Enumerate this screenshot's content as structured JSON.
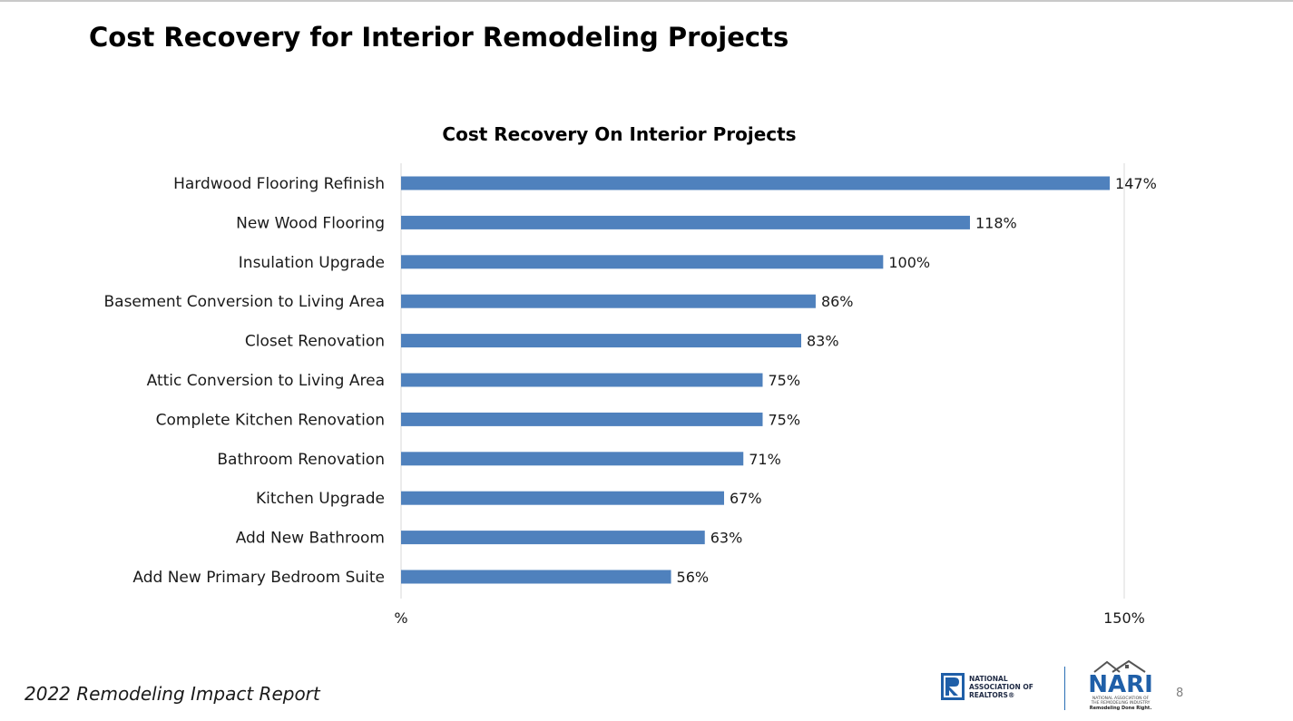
{
  "slide": {
    "title": "Cost Recovery for Interior Remodeling Projects",
    "footer_report": "2022 Remodeling Impact Report",
    "page_number": "8"
  },
  "logos": {
    "nar": {
      "line1": "NATIONAL",
      "line2": "ASSOCIATION OF",
      "line3": "REALTORS®",
      "icon": "realtor-r-icon"
    },
    "nari": {
      "word": "NARI",
      "sub1": "NATIONAL ASSOCIATION OF",
      "sub2": "THE REMODELING INDUSTRY",
      "tagline": "Remodeling Done Right.",
      "icon": "house-roof-icon"
    }
  },
  "colors": {
    "bar": "#4f81bd",
    "gridline": "#d9d9d9"
  },
  "chart_data": {
    "type": "bar",
    "orientation": "horizontal",
    "title": "Cost Recovery On Interior Projects",
    "categories": [
      "Hardwood Flooring Refinish",
      "New Wood Flooring",
      "Insulation Upgrade",
      "Basement Conversion to Living Area",
      "Closet Renovation",
      "Attic Conversion to Living Area",
      "Complete Kitchen Renovation",
      "Bathroom Renovation",
      "Kitchen Upgrade",
      "Add New Bathroom",
      "Add New Primary Bedroom Suite"
    ],
    "values": [
      147,
      118,
      100,
      86,
      83,
      75,
      75,
      71,
      67,
      63,
      56
    ],
    "value_labels": [
      "147%",
      "118%",
      "100%",
      "86%",
      "83%",
      "75%",
      "75%",
      "71%",
      "67%",
      "63%",
      "56%"
    ],
    "xlim": [
      0,
      150
    ],
    "x_ticks": [
      0,
      150
    ],
    "x_tick_labels": [
      "%",
      "150%"
    ],
    "grid": true
  }
}
